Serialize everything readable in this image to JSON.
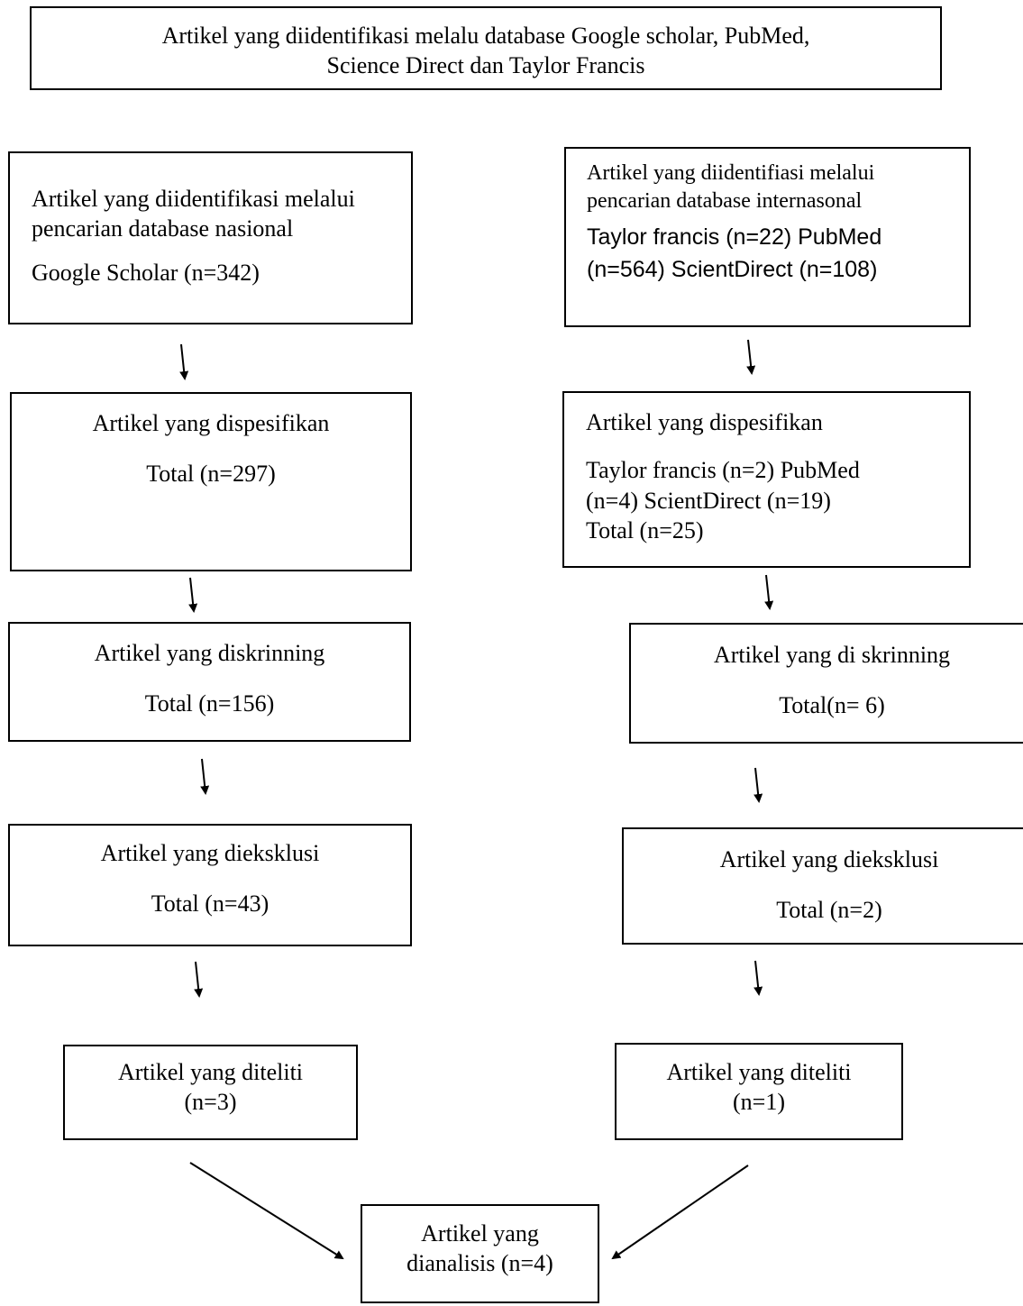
{
  "top": {
    "line1": "Artikel yang diidentifikasi melalu database Google scholar, PubMed,",
    "line2": "Science Direct dan Taylor Francis"
  },
  "left": {
    "identify": {
      "line1": "Artikel yang diidentifikasi melalui",
      "line2": "pencarian database nasional",
      "count": "Google Scholar (n=342)"
    },
    "specify": {
      "title": "Artikel yang dispesifikan",
      "total": "Total (n=297)"
    },
    "screen": {
      "title": "Artikel yang diskrinning",
      "total": "Total (n=156)"
    },
    "exclude": {
      "title": "Artikel yang dieksklusi",
      "total": "Total (n=43)"
    },
    "studied": {
      "title": "Artikel yang diteliti",
      "count": "(n=3)"
    }
  },
  "right": {
    "identify": {
      "line1": "Artikel yang diidentifiasi melalui",
      "line2": "pencarian database internasonal",
      "line3": "Taylor francis (n=22) PubMed",
      "line4": "(n=564) ScientDirect (n=108)"
    },
    "specify": {
      "title": "Artikel yang dispesifikan",
      "line1": "Taylor francis (n=2) PubMed",
      "line2": "(n=4) ScientDirect (n=19)",
      "total": "Total (n=25)"
    },
    "screen": {
      "title": "Artikel yang di skrinning",
      "total": "Total(n= 6)"
    },
    "exclude": {
      "title": "Artikel yang dieksklusi",
      "total": "Total (n=2)"
    },
    "studied": {
      "title": "Artikel yang diteliti",
      "count": "(n=1)"
    }
  },
  "final": {
    "line1": "Artikel yang",
    "line2": "dianalisis (n=4)"
  }
}
